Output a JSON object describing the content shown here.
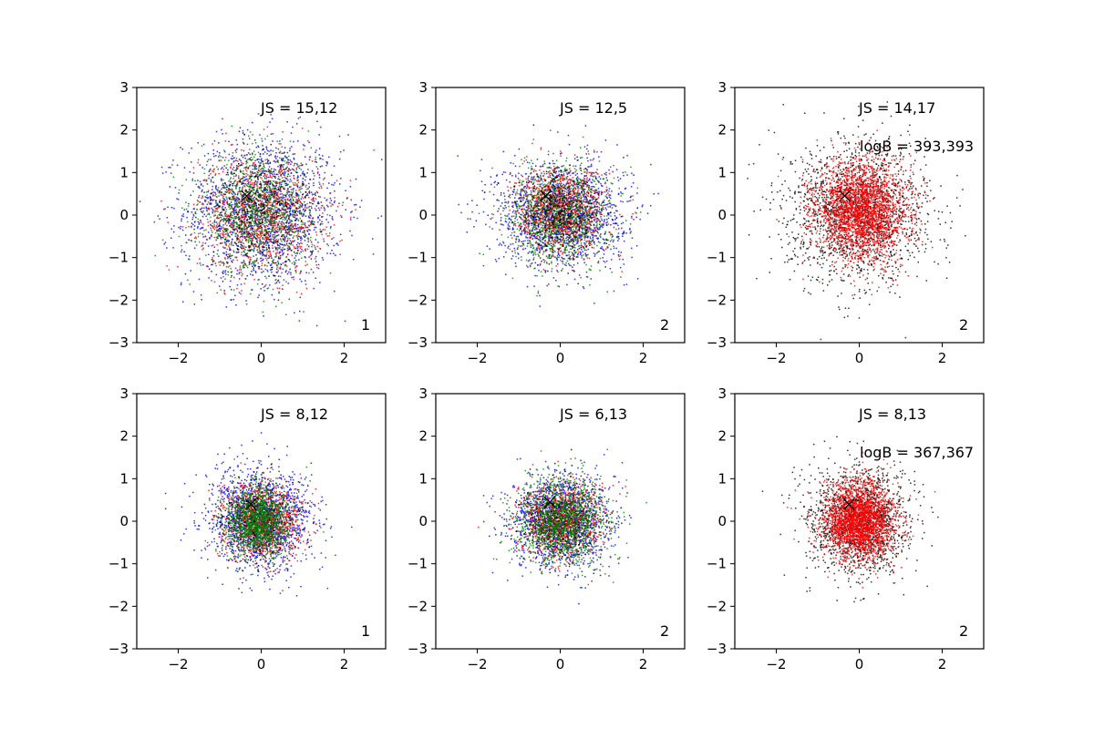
{
  "chart_data": [
    {
      "type": "scatter",
      "panel": 1,
      "xlim": [
        -3,
        3
      ],
      "ylim": [
        -3,
        3
      ],
      "xticks": [
        -2,
        0,
        2
      ],
      "yticks": [
        -3,
        -2,
        -1,
        0,
        1,
        2,
        3
      ],
      "grid": false,
      "annotations": {
        "js": "JS = 15,12",
        "logb": "",
        "corner": "1"
      },
      "marker": {
        "x": -0.35,
        "y": 0.45
      },
      "series": [
        {
          "color": "#0000ff",
          "count": 1500,
          "sx": 0.95,
          "sy": 0.9,
          "cx": 0.05,
          "cy": 0.1
        },
        {
          "color": "#ff0000",
          "count": 1100,
          "sx": 0.75,
          "sy": 0.7,
          "cx": 0.0,
          "cy": 0.0
        },
        {
          "color": "#008000",
          "count": 1100,
          "sx": 0.68,
          "sy": 0.68,
          "cx": -0.1,
          "cy": 0.05
        },
        {
          "color": "#000000",
          "count": 500,
          "sx": 0.7,
          "sy": 0.7,
          "cx": 0.0,
          "cy": 0.0
        }
      ]
    },
    {
      "type": "scatter",
      "panel": 2,
      "xlim": [
        -3,
        3
      ],
      "ylim": [
        -3,
        3
      ],
      "xticks": [
        -2,
        0,
        2
      ],
      "yticks": [
        -3,
        -2,
        -1,
        0,
        1,
        2,
        3
      ],
      "grid": false,
      "annotations": {
        "js": "JS = 12,5",
        "logb": "",
        "corner": "2"
      },
      "marker": {
        "x": -0.35,
        "y": 0.45
      },
      "series": [
        {
          "color": "#0000ff",
          "count": 1400,
          "sx": 0.78,
          "sy": 0.62,
          "cx": 0.05,
          "cy": 0.05
        },
        {
          "color": "#ff0000",
          "count": 1100,
          "sx": 0.55,
          "sy": 0.5,
          "cx": 0.0,
          "cy": 0.1
        },
        {
          "color": "#008000",
          "count": 1100,
          "sx": 0.6,
          "sy": 0.58,
          "cx": 0.0,
          "cy": 0.0
        },
        {
          "color": "#000000",
          "count": 500,
          "sx": 0.55,
          "sy": 0.55,
          "cx": 0.0,
          "cy": 0.0
        }
      ]
    },
    {
      "type": "scatter",
      "panel": 3,
      "xlim": [
        -3,
        3
      ],
      "ylim": [
        -3,
        3
      ],
      "xticks": [
        -2,
        0,
        2
      ],
      "yticks": [
        -3,
        -2,
        -1,
        0,
        1,
        2,
        3
      ],
      "grid": false,
      "annotations": {
        "js": "JS = 14,17",
        "logb": "logB = 393,393",
        "corner": "2"
      },
      "marker": {
        "x": -0.35,
        "y": 0.45
      },
      "series": [
        {
          "color": "#000000",
          "count": 1700,
          "sx": 0.85,
          "sy": 0.8,
          "cx": 0.0,
          "cy": 0.05
        },
        {
          "color": "#ff0000",
          "count": 2600,
          "sx": 0.55,
          "sy": 0.58,
          "cx": 0.05,
          "cy": 0.1
        }
      ]
    },
    {
      "type": "scatter",
      "panel": 4,
      "xlim": [
        -3,
        3
      ],
      "ylim": [
        -3,
        3
      ],
      "xticks": [
        -2,
        0,
        2
      ],
      "yticks": [
        -3,
        -2,
        -1,
        0,
        1,
        2,
        3
      ],
      "grid": false,
      "annotations": {
        "js": "JS = 8,12",
        "logb": "",
        "corner": "1"
      },
      "marker": {
        "x": -0.25,
        "y": 0.4
      },
      "series": [
        {
          "color": "#0000ff",
          "count": 1400,
          "sx": 0.65,
          "sy": 0.6,
          "cx": 0.0,
          "cy": 0.05
        },
        {
          "color": "#ff0000",
          "count": 1000,
          "sx": 0.5,
          "sy": 0.45,
          "cx": 0.0,
          "cy": 0.0
        },
        {
          "color": "#000000",
          "count": 500,
          "sx": 0.45,
          "sy": 0.45,
          "cx": 0.0,
          "cy": 0.0
        },
        {
          "color": "#008000",
          "count": 1300,
          "sx": 0.38,
          "sy": 0.4,
          "cx": -0.1,
          "cy": 0.0
        }
      ]
    },
    {
      "type": "scatter",
      "panel": 5,
      "xlim": [
        -3,
        3
      ],
      "ylim": [
        -3,
        3
      ],
      "xticks": [
        -2,
        0,
        2
      ],
      "yticks": [
        -3,
        -2,
        -1,
        0,
        1,
        2,
        3
      ],
      "grid": false,
      "annotations": {
        "js": "JS = 6,13",
        "logb": "",
        "corner": "2"
      },
      "marker": {
        "x": -0.25,
        "y": 0.45
      },
      "series": [
        {
          "color": "#0000ff",
          "count": 1300,
          "sx": 0.6,
          "sy": 0.55,
          "cx": 0.0,
          "cy": 0.0
        },
        {
          "color": "#ff0000",
          "count": 1000,
          "sx": 0.48,
          "sy": 0.45,
          "cx": 0.0,
          "cy": 0.0
        },
        {
          "color": "#000000",
          "count": 500,
          "sx": 0.48,
          "sy": 0.45,
          "cx": 0.0,
          "cy": 0.0
        },
        {
          "color": "#008000",
          "count": 1300,
          "sx": 0.55,
          "sy": 0.5,
          "cx": 0.05,
          "cy": 0.0
        }
      ]
    },
    {
      "type": "scatter",
      "panel": 6,
      "xlim": [
        -3,
        3
      ],
      "ylim": [
        -3,
        3
      ],
      "xticks": [
        -2,
        0,
        2
      ],
      "yticks": [
        -3,
        -2,
        -1,
        0,
        1,
        2,
        3
      ],
      "grid": false,
      "annotations": {
        "js": "JS = 8,13",
        "logb": "logB = 367,367",
        "corner": "2"
      },
      "marker": {
        "x": -0.25,
        "y": 0.4
      },
      "series": [
        {
          "color": "#000000",
          "count": 1500,
          "sx": 0.6,
          "sy": 0.62,
          "cx": 0.0,
          "cy": 0.0
        },
        {
          "color": "#ff0000",
          "count": 2500,
          "sx": 0.42,
          "sy": 0.45,
          "cx": 0.0,
          "cy": 0.0
        }
      ]
    }
  ]
}
